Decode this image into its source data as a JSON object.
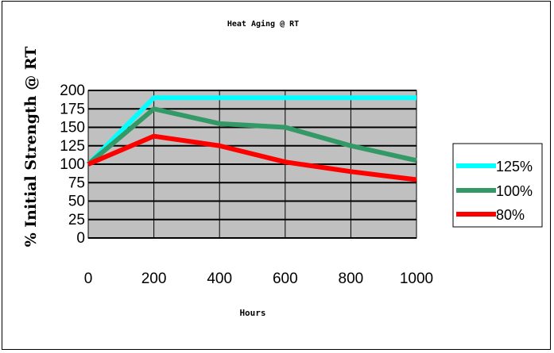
{
  "chart_data": {
    "type": "line",
    "title": "Heat Aging @ RT",
    "xlabel": "Hours",
    "ylabel": "% Initial Strength @ RT",
    "x": [
      0,
      200,
      400,
      600,
      800,
      1000
    ],
    "xlim": [
      0,
      1000
    ],
    "ylim": [
      0,
      200
    ],
    "x_ticks": [
      "0",
      "200",
      "400",
      "600",
      "800",
      "1000"
    ],
    "y_ticks": [
      "0",
      "25",
      "50",
      "75",
      "100",
      "125",
      "150",
      "175",
      "200"
    ],
    "grid": true,
    "plot_background": "#c0c0c0",
    "legend_position": "right",
    "series": [
      {
        "name": "125%",
        "color": "#00ffff",
        "values": [
          100,
          190,
          190,
          190,
          190,
          190
        ]
      },
      {
        "name": "100%",
        "color": "#339966",
        "values": [
          100,
          175,
          155,
          150,
          125,
          105
        ]
      },
      {
        "name": "80%",
        "color": "#ff0000",
        "values": [
          100,
          138,
          125,
          103,
          90,
          79
        ]
      }
    ]
  }
}
